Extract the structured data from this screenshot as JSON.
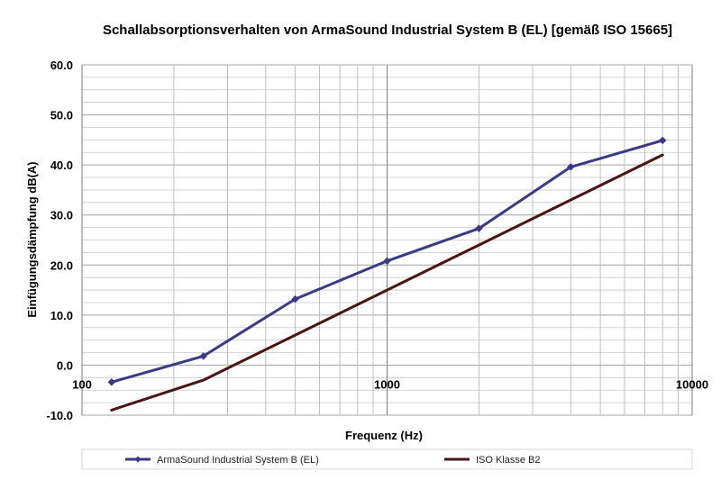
{
  "chart_data": {
    "type": "line",
    "title": "Schallabsorptionsverhalten von ArmaSound Industrial System B (EL) [gemäß ISO 15665]",
    "xlabel": "Frequenz (Hz)",
    "ylabel": "Einfügungsdämpfung dB(A)",
    "x_scale": "log",
    "xlim": [
      100,
      10000
    ],
    "ylim": [
      -10,
      60
    ],
    "x_ticks": [
      100,
      1000,
      10000
    ],
    "x_tick_labels": [
      "100",
      "1000",
      "10000"
    ],
    "y_ticks": [
      -10,
      0,
      10,
      20,
      30,
      40,
      50,
      60
    ],
    "y_tick_labels": [
      "-10.0",
      "0.0",
      "10.0",
      "20.0",
      "30.0",
      "40.0",
      "50.0",
      "60.0"
    ],
    "grid": true,
    "legend_position": "bottom",
    "series": [
      {
        "name": "ArmaSound Industrial System B (EL)",
        "color": "#3a3a86",
        "marker": "diamond",
        "x": [
          125,
          250,
          500,
          1000,
          2000,
          4000,
          8000
        ],
        "y": [
          -3.4,
          1.8,
          13.2,
          20.8,
          27.3,
          39.6,
          44.9
        ]
      },
      {
        "name": "ISO Klasse B2",
        "color": "#4a1414",
        "marker": "none",
        "x": [
          125,
          250,
          500,
          1000,
          2000,
          4000,
          8000
        ],
        "y": [
          -9,
          -3,
          6,
          15,
          24,
          33,
          42
        ]
      }
    ]
  }
}
